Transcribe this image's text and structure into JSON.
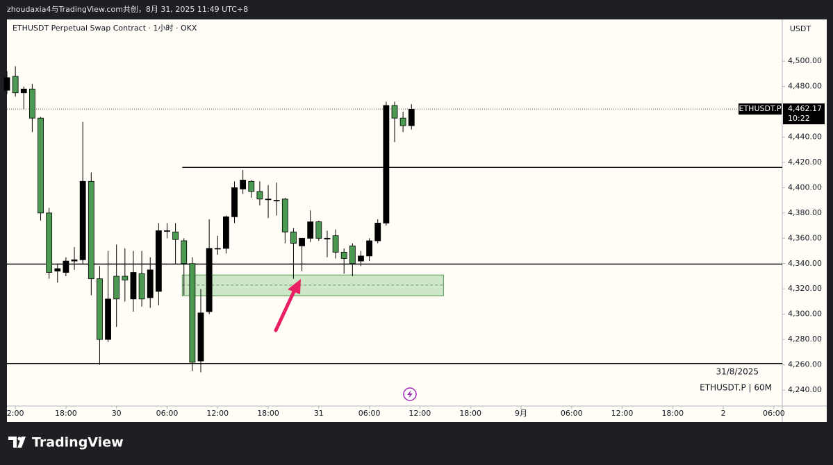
{
  "header": "zhoudaxia4与TradingView.com共创，8月 31, 2025 11:49 UTC+8",
  "footer": "TradingView",
  "chart_data": {
    "type": "candlestick",
    "title": "ETHUSDT Perpetual Swap Contract · 1小时 · OKX",
    "currency": "USDT",
    "date_note": "31/8/2025",
    "symbol_note": "ETHUSDT.P | 60M",
    "up_color": "#000000",
    "down_color": "#4c9a52",
    "xlim": [
      -1,
      91
    ],
    "ylim": [
      4227.4,
      4533
    ],
    "xticks": [
      {
        "value": 0,
        "label": "2:00"
      },
      {
        "value": 6,
        "label": "18:00"
      },
      12,
      {
        "value": 18,
        "label": "06:00"
      },
      {
        "value": 24,
        "label": "12:00"
      },
      {
        "value": 30,
        "label": "18:00"
      },
      {
        "value": 36,
        "label": "31"
      },
      {
        "value": 42,
        "label": "06:00"
      },
      {
        "value": 48,
        "label": "12:00"
      },
      {
        "value": 54,
        "label": "18:00"
      },
      {
        "value": 60,
        "label": "9月"
      },
      {
        "value": 66,
        "label": "06:00"
      },
      {
        "value": 72,
        "label": "12:00"
      },
      {
        "value": 78,
        "label": "18:00"
      },
      {
        "value": 84,
        "label": "2"
      },
      {
        "value": 90,
        "label": "06:00"
      }
    ],
    "xtick_12_label": "30",
    "yticks": [
      {
        "value": 4240,
        "label": "4,240.00"
      },
      {
        "value": 4260,
        "label": "4,260.00"
      },
      {
        "value": 4280,
        "label": "4,280.00"
      },
      {
        "value": 4300,
        "label": "4,300.00"
      },
      {
        "value": 4320,
        "label": "4,320.00"
      },
      {
        "value": 4340,
        "label": "4,340.00"
      },
      {
        "value": 4360,
        "label": "4,360.00"
      },
      {
        "value": 4380,
        "label": "4,380.00"
      },
      {
        "value": 4400,
        "label": "4,400.00"
      },
      {
        "value": 4420,
        "label": "4,420.00"
      },
      {
        "value": 4440,
        "label": "4,440.00"
      },
      {
        "value": 4480,
        "label": "4,480.00"
      },
      {
        "value": 4500,
        "label": "4,500.00"
      }
    ],
    "candles": {
      "x": [
        -1,
        0,
        1,
        2,
        3,
        4,
        5,
        6,
        7,
        8,
        9,
        10,
        11,
        12,
        13,
        14,
        15,
        16,
        17,
        18,
        19,
        20,
        21,
        22,
        23,
        24,
        25,
        26,
        27,
        28,
        29,
        30,
        31,
        32,
        33,
        34,
        35,
        36,
        37,
        38,
        39,
        40,
        41,
        42,
        43,
        44,
        45,
        46,
        47
      ],
      "open": [
        4477,
        4488,
        4475,
        4478,
        4455,
        4380,
        4334,
        4333,
        4342,
        4343,
        4405,
        4328,
        4280,
        4330,
        4330,
        4312,
        4332,
        4313,
        4318,
        4366,
        4365,
        4358,
        4340,
        4263,
        4302,
        4352,
        4352,
        4377,
        4399,
        4405,
        4397,
        4391,
        4390,
        4391,
        4365,
        4354,
        4360,
        4373,
        4360,
        4362,
        4349,
        4354,
        4342,
        4346,
        4358,
        4372,
        4465,
        4455,
        4449
      ],
      "high": [
        4492,
        4496,
        4480,
        4482,
        4456,
        4384,
        4340,
        4345,
        4353,
        4452,
        4412,
        4338,
        4350,
        4355,
        4352,
        4350,
        4350,
        4345,
        4372,
        4372,
        4372,
        4360,
        4345,
        4320,
        4375,
        4362,
        4378,
        4405,
        4414,
        4406,
        4405,
        4402,
        4404,
        4392,
        4368,
        4360,
        4382,
        4374,
        4366,
        4367,
        4352,
        4356,
        4350,
        4360,
        4375,
        4468,
        4468,
        4460,
        4466
      ],
      "low": [
        4474,
        4472,
        4462,
        4444,
        4374,
        4328,
        4325,
        4330,
        4335,
        4340,
        4315,
        4260,
        4278,
        4290,
        4310,
        4302,
        4306,
        4305,
        4307,
        4360,
        4340,
        4315,
        4255,
        4254,
        4300,
        4347,
        4348,
        4372,
        4395,
        4392,
        4386,
        4376,
        4378,
        4356,
        4328,
        4334,
        4357,
        4358,
        4345,
        4344,
        4332,
        4330,
        4338,
        4342,
        4356,
        4370,
        4436,
        4444,
        4446
      ],
      "close": [
        4487,
        4475,
        4478,
        4455,
        4380,
        4333,
        4336,
        4342,
        4343,
        4405,
        4328,
        4280,
        4312,
        4312,
        4327,
        4333,
        4312,
        4335,
        4366,
        4366,
        4359,
        4340,
        4262,
        4301,
        4352,
        4352,
        4377,
        4400,
        4406,
        4397,
        4391,
        4391,
        4390,
        4365,
        4356,
        4360,
        4373,
        4360,
        4360,
        4349,
        4344,
        4340,
        4346,
        4358,
        4372,
        4465,
        4455,
        4449,
        4462
      ]
    },
    "levels": [
      {
        "value": 4416,
        "from": 19.8
      },
      {
        "value": 4339.6,
        "from": -1
      },
      {
        "value": 4261,
        "from": -1
      }
    ],
    "zone": {
      "top": 4331,
      "bottom": 4314.6,
      "mid": 4323,
      "x": [
        19.8,
        50.8
      ]
    },
    "last_price": {
      "value": 4462.17,
      "label": "4,462.17",
      "symbol": "ETHUSDT.P",
      "countdown": "10:22"
    }
  }
}
